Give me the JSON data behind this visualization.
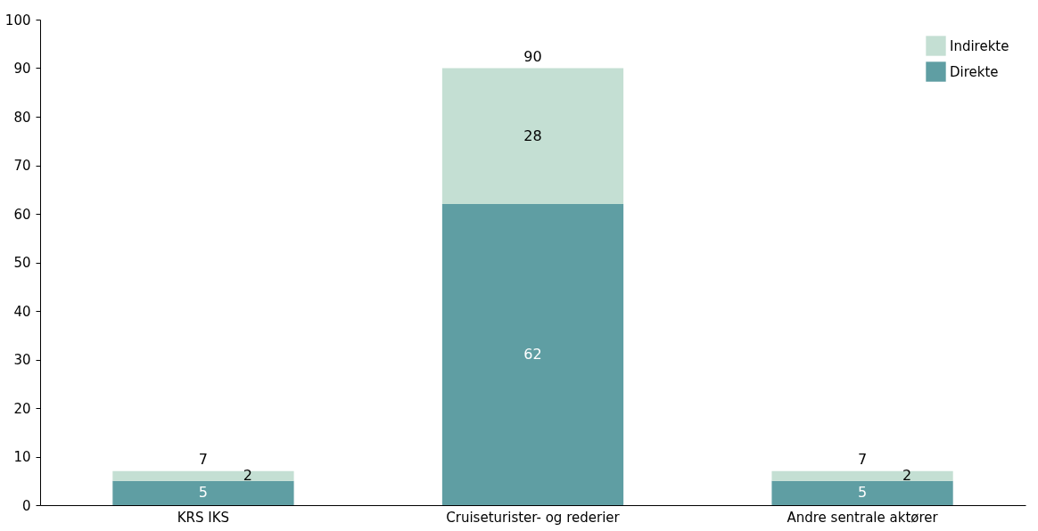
{
  "chart_data": {
    "type": "bar",
    "stacked": true,
    "categories": [
      "KRS IKS",
      "Cruiseturister- og rederier",
      "Andre sentrale aktører"
    ],
    "series": [
      {
        "name": "Direkte",
        "color": "#5f9ea3",
        "values": [
          5,
          62,
          5
        ]
      },
      {
        "name": "Indirekte",
        "color": "#c4dfd3",
        "values": [
          2,
          28,
          2
        ]
      }
    ],
    "ylim": [
      0,
      100
    ],
    "yticks": [
      0,
      10,
      20,
      30,
      40,
      50,
      60,
      70,
      80,
      90,
      100
    ],
    "data_labels": true,
    "totals": [
      "7",
      "90",
      "7"
    ],
    "legend": "top right",
    "grid": false
  }
}
